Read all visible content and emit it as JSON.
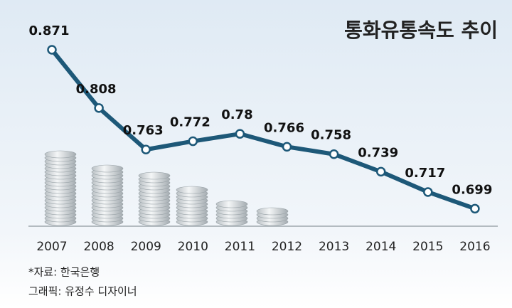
{
  "chart_data": {
    "type": "line",
    "title": "통화유통속도 추이",
    "categories": [
      "2007",
      "2008",
      "2009",
      "2010",
      "2011",
      "2012",
      "2013",
      "2014",
      "2015",
      "2016"
    ],
    "series": [
      {
        "name": "통화유통속도",
        "color": "#1d5878",
        "values": [
          0.871,
          0.808,
          0.763,
          0.772,
          0.78,
          0.766,
          0.758,
          0.739,
          0.717,
          0.699
        ]
      }
    ],
    "ylim": [
      0.68,
      0.92
    ],
    "notes": [
      "*자료: 한국은행",
      "그래픽: 유정수 디자이너"
    ]
  }
}
